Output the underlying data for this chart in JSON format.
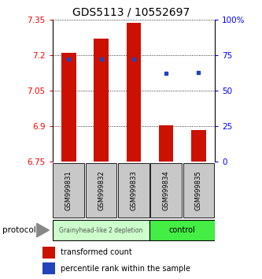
{
  "title": "GDS5113 / 10552697",
  "samples": [
    "GSM999831",
    "GSM999832",
    "GSM999833",
    "GSM999834",
    "GSM999835"
  ],
  "bar_bottoms": [
    6.75,
    6.75,
    6.75,
    6.75,
    6.75
  ],
  "bar_tops": [
    7.21,
    7.27,
    7.335,
    6.905,
    6.885
  ],
  "percentile_ranks": [
    72,
    72,
    72,
    62,
    63
  ],
  "ylim": [
    6.75,
    7.35
  ],
  "yticks_left": [
    7.35,
    7.2,
    7.05,
    6.9,
    6.75
  ],
  "yticks_right_vals": [
    100,
    75,
    50,
    25,
    0
  ],
  "yticks_right_labels": [
    "100%",
    "75",
    "50",
    "25",
    "0"
  ],
  "bar_color": "#cc1100",
  "dot_color": "#2244bb",
  "background_color": "#ffffff",
  "group1_label": "Grainyhead-like 2 depletion",
  "group2_label": "control",
  "group1_color": "#ccffcc",
  "group2_color": "#44ee44",
  "protocol_label": "protocol",
  "legend_bar_label": "transformed count",
  "legend_dot_label": "percentile rank within the sample",
  "title_fontsize": 10,
  "tick_fontsize": 7.5,
  "label_fontsize": 6.5,
  "legend_fontsize": 7
}
